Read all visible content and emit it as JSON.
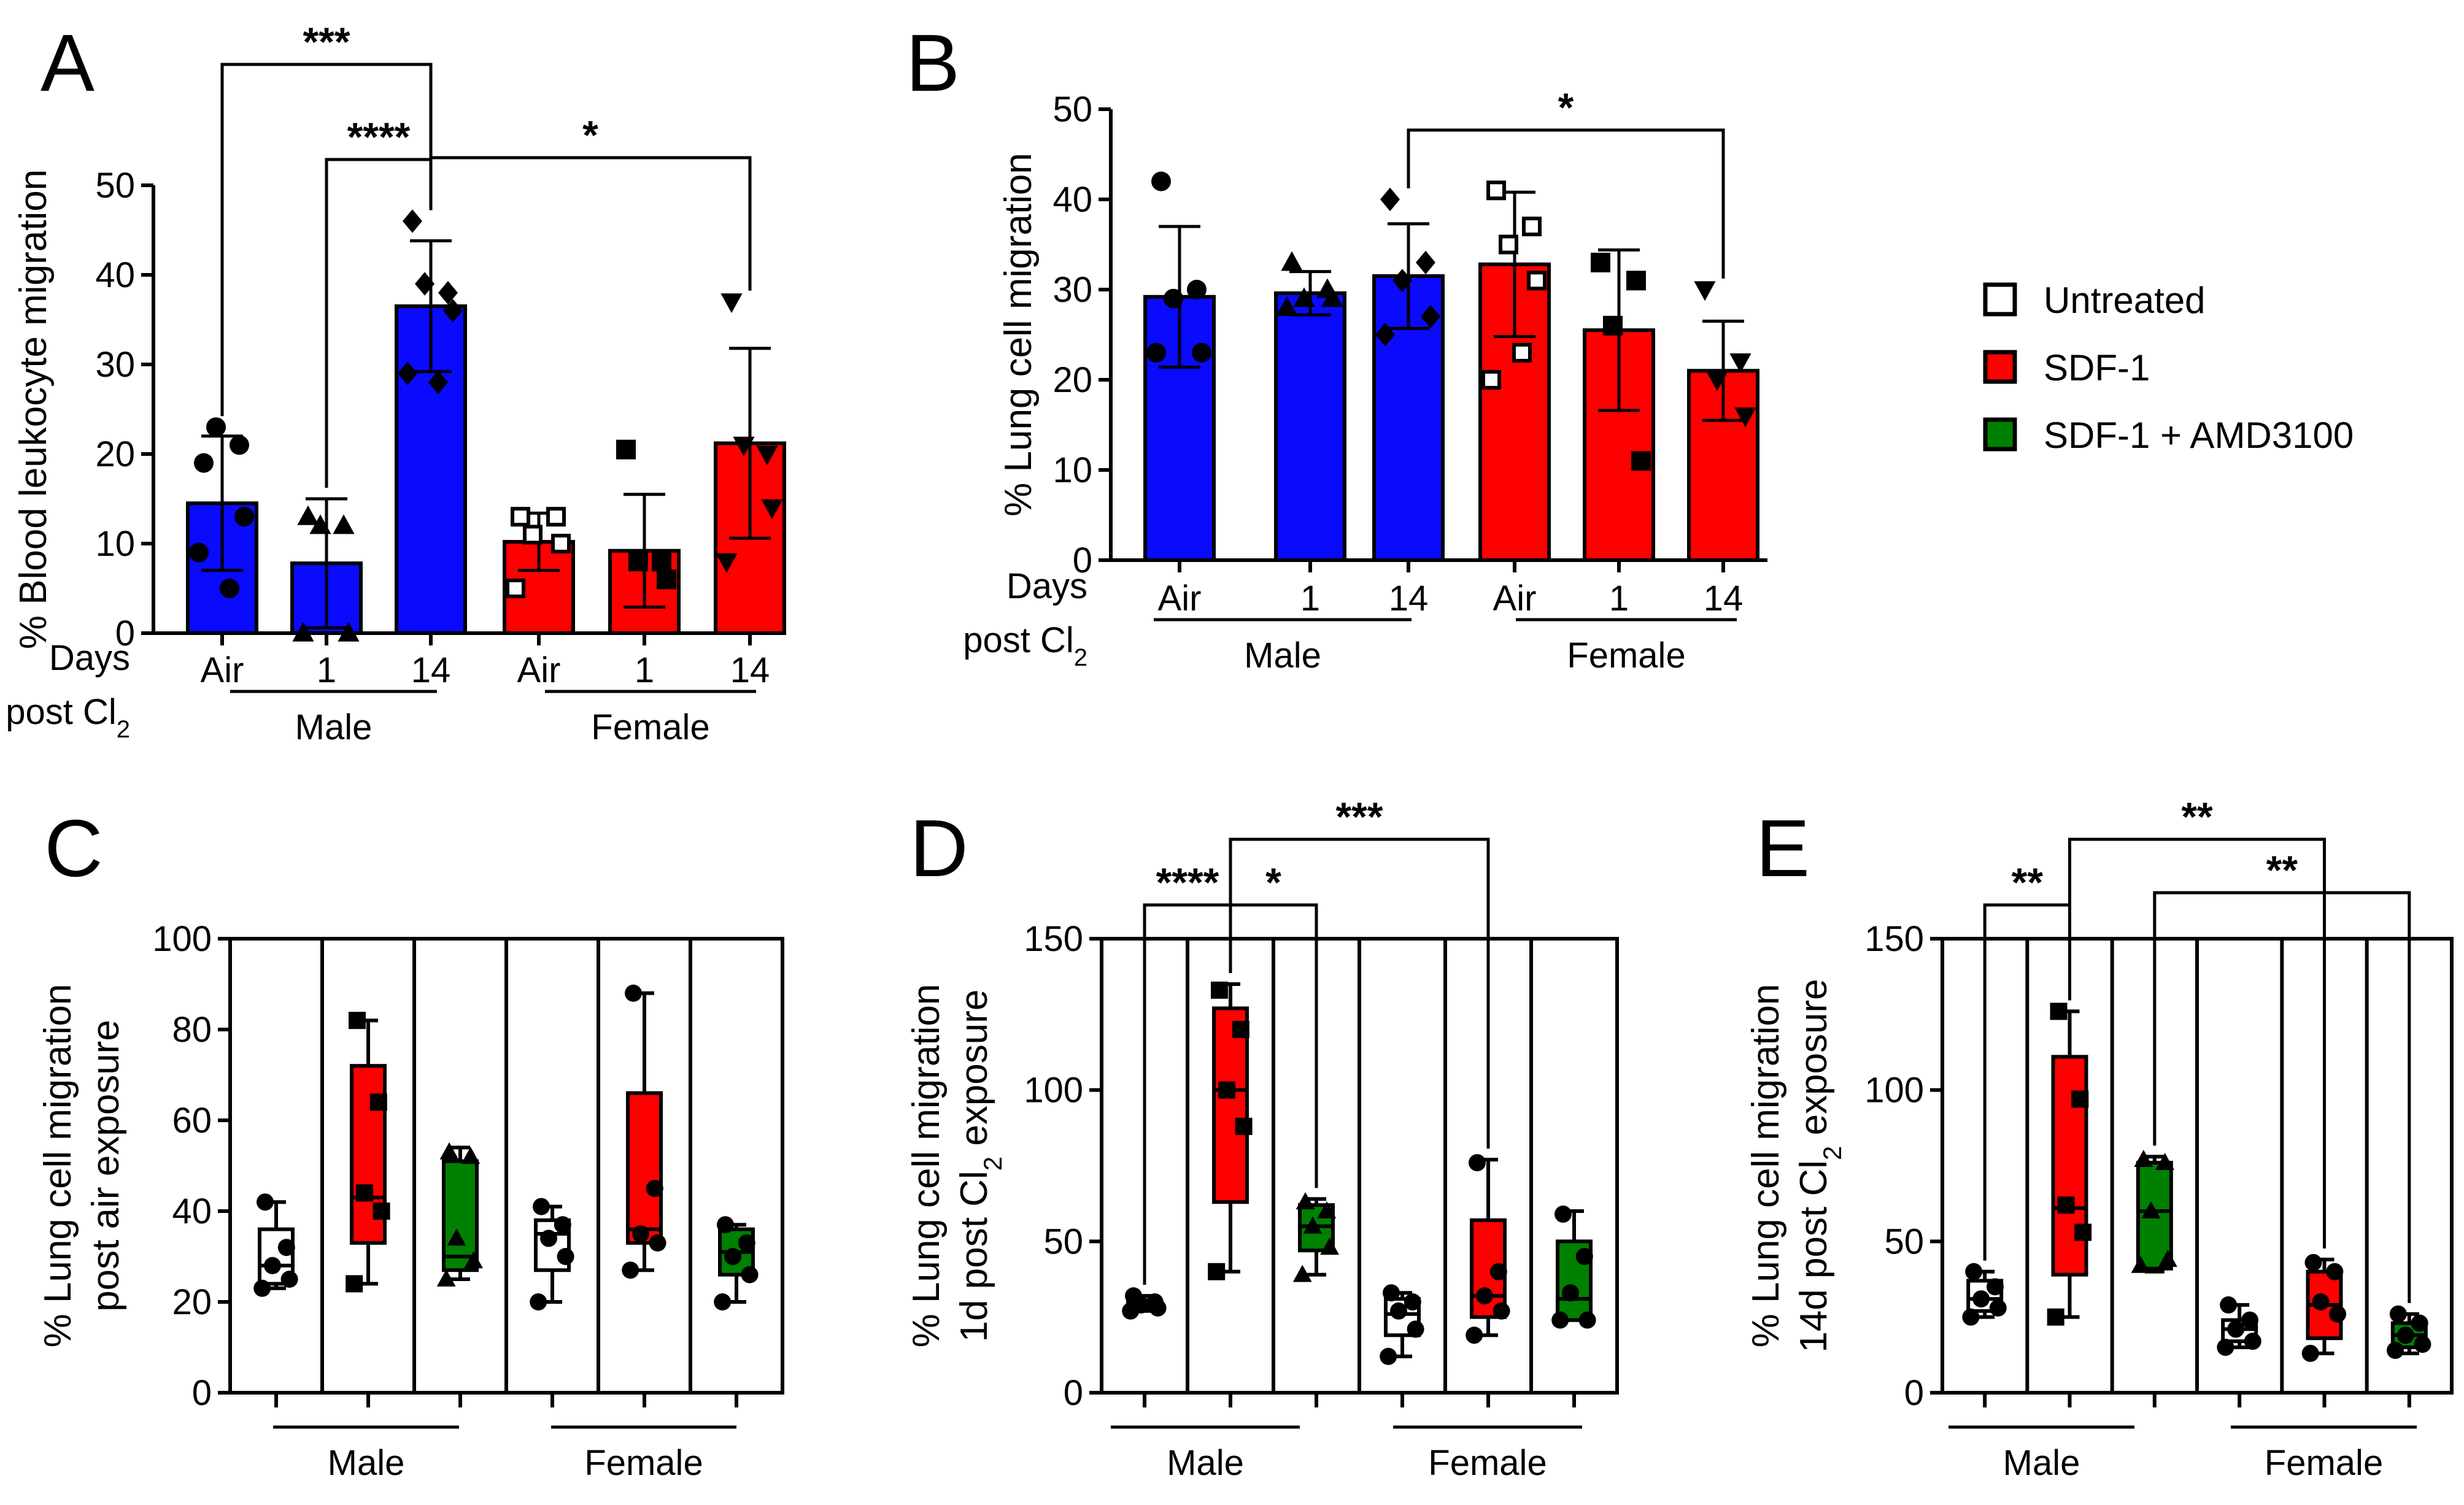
{
  "colors": {
    "male": "#0a0aff",
    "female": "#ff0000",
    "untreated": "#ffffff",
    "sdf1": "#ff0000",
    "amd": "#008000",
    "black": "#000000"
  },
  "legend": {
    "items": [
      {
        "label": "Untreated",
        "color": "#ffffff"
      },
      {
        "label": "SDF-1",
        "color": "#ff0000"
      },
      {
        "label": "SDF-1 + AMD3100",
        "color": "#008000"
      }
    ]
  },
  "chart_data": [
    {
      "panel": "A",
      "type": "bar",
      "ylabel": "% Blood leukocyte migration",
      "ylim": [
        0,
        50
      ],
      "yticks": [
        0,
        10,
        20,
        30,
        40,
        50
      ],
      "row_label": [
        "Days",
        "post Cl",
        "2"
      ],
      "categories": [
        "Air",
        "1",
        "14",
        "Air",
        "1",
        "14"
      ],
      "groups": [
        "Male",
        "Female"
      ],
      "bars": [
        {
          "sex": "Male",
          "mean": 14.5,
          "sd": 7.5,
          "marker": "circle",
          "points": [
            19,
            21,
            23,
            13,
            9,
            5
          ]
        },
        {
          "sex": "Male",
          "mean": 7.8,
          "sd": 7.2,
          "marker": "triangle",
          "points": [
            13,
            12,
            12,
            0,
            0
          ]
        },
        {
          "sex": "Male",
          "mean": 36.5,
          "sd": 7.3,
          "marker": "diamond",
          "points": [
            46,
            38,
            39,
            36,
            29,
            28
          ]
        },
        {
          "sex": "Female",
          "mean": 10.2,
          "sd": 3.2,
          "marker": "square-open",
          "points": [
            13,
            13,
            11,
            10,
            5
          ]
        },
        {
          "sex": "Female",
          "mean": 9.2,
          "sd": 6.3,
          "marker": "square",
          "points": [
            20.5,
            8,
            8,
            6
          ]
        },
        {
          "sex": "Female",
          "mean": 21.2,
          "sd": 10.6,
          "marker": "triangle-down",
          "points": [
            37,
            20,
            21,
            14,
            8
          ]
        }
      ],
      "significance": [
        {
          "from": 0,
          "to": 2,
          "label": "***"
        },
        {
          "from": 1,
          "to": 2,
          "label": "****"
        },
        {
          "from": 2,
          "to": 5,
          "label": "*"
        }
      ]
    },
    {
      "panel": "B",
      "type": "bar",
      "ylabel": "% Lung cell migration",
      "ylim": [
        0,
        50
      ],
      "yticks": [
        0,
        10,
        20,
        30,
        40,
        50
      ],
      "row_label": [
        "Days",
        "post Cl",
        "2"
      ],
      "categories": [
        "Air",
        "1",
        "14",
        "Air",
        "1",
        "14"
      ],
      "groups": [
        "Male",
        "Female"
      ],
      "bars": [
        {
          "sex": "Male",
          "mean": 29.2,
          "sd": 7.8,
          "marker": "circle",
          "points": [
            42,
            30,
            29,
            23,
            23
          ]
        },
        {
          "sex": "Male",
          "mean": 29.6,
          "sd": 2.4,
          "marker": "triangle",
          "points": [
            33,
            30,
            29,
            29,
            28
          ]
        },
        {
          "sex": "Male",
          "mean": 31.5,
          "sd": 5.8,
          "marker": "diamond",
          "points": [
            40,
            33,
            31,
            27,
            25
          ]
        },
        {
          "sex": "Female",
          "mean": 32.8,
          "sd": 8,
          "marker": "square-open",
          "points": [
            41,
            37,
            35,
            31,
            20,
            23
          ]
        },
        {
          "sex": "Female",
          "mean": 25.5,
          "sd": 8.9,
          "marker": "square",
          "points": [
            33,
            31,
            26,
            11
          ]
        },
        {
          "sex": "Female",
          "mean": 21,
          "sd": 5.5,
          "marker": "triangle-down",
          "points": [
            30,
            22,
            20,
            16
          ]
        }
      ],
      "significance": [
        {
          "from": 2,
          "to": 5,
          "label": "*"
        }
      ]
    },
    {
      "panel": "C",
      "type": "box",
      "ylabel": [
        "% Lung cell migration",
        "post air exposure"
      ],
      "ylim": [
        0,
        100
      ],
      "yticks": [
        0,
        20,
        40,
        60,
        80,
        100
      ],
      "groups": [
        "Male",
        "Female"
      ],
      "boxes": [
        {
          "sex": "Male",
          "treatment": "untreated",
          "min": 23,
          "q1": 24,
          "median": 28,
          "q3": 36,
          "max": 42,
          "marker": "circle",
          "points": [
            42,
            32,
            28,
            25,
            23
          ]
        },
        {
          "sex": "Male",
          "treatment": "sdf1",
          "min": 24,
          "q1": 33,
          "median": 43,
          "q3": 72,
          "max": 82,
          "marker": "square",
          "points": [
            82,
            64,
            44,
            40,
            24
          ]
        },
        {
          "sex": "Male",
          "treatment": "amd",
          "min": 25,
          "q1": 27,
          "median": 30,
          "q3": 51,
          "max": 54,
          "marker": "triangle",
          "points": [
            53,
            52,
            34,
            29,
            25
          ]
        },
        {
          "sex": "Female",
          "treatment": "untreated",
          "min": 20,
          "q1": 27,
          "median": 35,
          "q3": 38,
          "max": 41,
          "marker": "circle",
          "points": [
            41,
            37,
            34,
            30,
            20
          ]
        },
        {
          "sex": "Female",
          "treatment": "sdf1",
          "min": 27,
          "q1": 33,
          "median": 36,
          "q3": 66,
          "max": 88,
          "marker": "circle",
          "points": [
            88,
            45,
            35,
            33,
            27
          ]
        },
        {
          "sex": "Female",
          "treatment": "amd",
          "min": 20,
          "q1": 26,
          "median": 31,
          "q3": 36,
          "max": 37,
          "marker": "circle",
          "points": [
            37,
            33,
            30,
            26,
            20
          ]
        }
      ],
      "significance": []
    },
    {
      "panel": "D",
      "type": "box",
      "ylabel": [
        "% Lung cell migration",
        "1d post Cl",
        "2",
        " exposure"
      ],
      "ylim": [
        0,
        150
      ],
      "yticks": [
        0,
        50,
        100,
        150
      ],
      "groups": [
        "Male",
        "Female"
      ],
      "boxes": [
        {
          "sex": "Male",
          "treatment": "untreated",
          "min": 27,
          "q1": 28,
          "median": 29,
          "q3": 30,
          "max": 32,
          "marker": "circle",
          "points": [
            32,
            30,
            29,
            28,
            27
          ]
        },
        {
          "sex": "Male",
          "treatment": "sdf1",
          "min": 40,
          "q1": 63,
          "median": 100,
          "q3": 127,
          "max": 135,
          "marker": "square",
          "points": [
            133,
            120,
            100,
            88,
            40
          ]
        },
        {
          "sex": "Male",
          "treatment": "amd",
          "min": 39,
          "q1": 47,
          "median": 55,
          "q3": 62,
          "max": 64,
          "marker": "triangle",
          "points": [
            63,
            60,
            55,
            48,
            39
          ]
        },
        {
          "sex": "Female",
          "treatment": "untreated",
          "min": 12,
          "q1": 19,
          "median": 26,
          "q3": 31,
          "max": 33,
          "marker": "circle",
          "points": [
            33,
            30,
            27,
            21,
            12
          ]
        },
        {
          "sex": "Female",
          "treatment": "sdf1",
          "min": 19,
          "q1": 25,
          "median": 32,
          "q3": 57,
          "max": 77,
          "marker": "circle",
          "points": [
            76,
            40,
            32,
            27,
            19
          ]
        },
        {
          "sex": "Female",
          "treatment": "amd",
          "min": 24,
          "q1": 24,
          "median": 31,
          "q3": 50,
          "max": 60,
          "marker": "circle",
          "points": [
            59,
            45,
            33,
            24,
            24
          ]
        }
      ],
      "significance": [
        {
          "from": 0,
          "to": 1,
          "label": "****"
        },
        {
          "from": 1,
          "to": 2,
          "label": "*"
        },
        {
          "from": 1,
          "to": 4,
          "label": "***"
        }
      ]
    },
    {
      "panel": "E",
      "type": "box",
      "ylabel": [
        "% Lung cell migration",
        "14d post Cl",
        "2",
        " exposure"
      ],
      "ylim": [
        0,
        150
      ],
      "yticks": [
        0,
        50,
        100,
        150
      ],
      "groups": [
        "Male",
        "Female"
      ],
      "boxes": [
        {
          "sex": "Male",
          "treatment": "untreated",
          "min": 25,
          "q1": 27,
          "median": 31,
          "q3": 37,
          "max": 40,
          "marker": "circle",
          "points": [
            40,
            35,
            31,
            28,
            25
          ]
        },
        {
          "sex": "Male",
          "treatment": "sdf1",
          "min": 25,
          "q1": 39,
          "median": 61,
          "q3": 111,
          "max": 126,
          "marker": "square",
          "points": [
            126,
            97,
            62,
            53,
            25
          ]
        },
        {
          "sex": "Male",
          "treatment": "amd",
          "min": 40,
          "q1": 41,
          "median": 60,
          "q3": 76,
          "max": 78,
          "marker": "triangle",
          "points": [
            77,
            76,
            60,
            44,
            42
          ]
        },
        {
          "sex": "Female",
          "treatment": "untreated",
          "min": 15,
          "q1": 17,
          "median": 21,
          "q3": 24,
          "max": 29,
          "marker": "circle",
          "points": [
            29,
            24,
            21,
            17,
            15
          ]
        },
        {
          "sex": "Female",
          "treatment": "sdf1",
          "min": 13,
          "q1": 18,
          "median": 29,
          "q3": 40,
          "max": 44,
          "marker": "circle",
          "points": [
            43,
            40,
            30,
            26,
            13
          ]
        },
        {
          "sex": "Female",
          "treatment": "amd",
          "min": 13,
          "q1": 15,
          "median": 19,
          "q3": 23,
          "max": 26,
          "marker": "circle",
          "points": [
            26,
            23,
            19,
            16,
            14
          ]
        }
      ],
      "significance": [
        {
          "from": 0,
          "to": 1,
          "label": "**"
        },
        {
          "from": 1,
          "to": 4,
          "label": "**"
        },
        {
          "from": 2,
          "to": 5,
          "label": "**"
        }
      ]
    }
  ]
}
